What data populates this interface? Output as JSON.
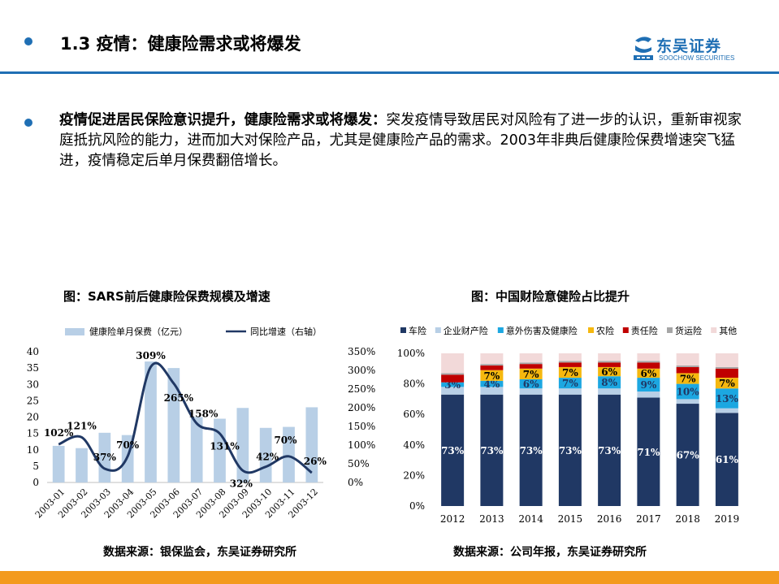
{
  "header": {
    "title": "1.3 疫情：健康险需求或将爆发",
    "logo_text": "东吴证券",
    "logo_sub": "SOOCHOW SECURITIES"
  },
  "body": {
    "bold_lead": "疫情促进居民保险意识提升，健康险需求或将爆发：",
    "text": "突发疫情导致居民对风险有了进一步的认识，重新审视家庭抵抗风险的能力，进而加大对保险产品，尤其是健康险产品的需求。2003年非典后健康险保费增速突飞猛进，疫情稳定后单月保费翻倍增长。"
  },
  "chart1": {
    "title": "图：SARS前后健康险保费规模及增速",
    "source": "数据来源：银保监会，东吴证券研究所"
  },
  "chart2": {
    "title": "图：中国财险意健险占比提升",
    "source": "数据来源：公司年报，东吴证券研究所"
  },
  "colors": {
    "brand": "#1f6fb4",
    "footer": "#f39a1e",
    "bar1": "#b8cfe6",
    "line1": "#203864"
  },
  "chart_data": [
    {
      "type": "bar",
      "categories": [
        "2003-01",
        "2003-02",
        "2003-03",
        "2003-04",
        "2003-05",
        "2003-06",
        "2003-07",
        "2003-08",
        "2003-09",
        "2003-10",
        "2003-11",
        "2003-12"
      ],
      "series": [
        {
          "name": "健康险单月保费（亿元）",
          "axis": "left",
          "type": "bar",
          "values": [
            11.2,
            10.5,
            15.2,
            14.5,
            37.0,
            35.0,
            20.0,
            19.5,
            22.8,
            16.7,
            17.0,
            23.0
          ]
        },
        {
          "name": "同比增速（右轴）",
          "axis": "right",
          "type": "line",
          "values": [
            102,
            121,
            37,
            70,
            309,
            265,
            158,
            131,
            32,
            42,
            70,
            26
          ],
          "labels": [
            "102%",
            "121%",
            "37%",
            "70%",
            "309%",
            "265%",
            "158%",
            "131%",
            "32%",
            "42%",
            "70%",
            "26%"
          ]
        }
      ],
      "yticks_left": [
        "0",
        "5",
        "10",
        "15",
        "20",
        "25",
        "30",
        "35",
        "40"
      ],
      "yticks_right": [
        "0%",
        "50%",
        "100%",
        "150%",
        "200%",
        "250%",
        "300%",
        "350%"
      ],
      "ylim_left": [
        0,
        40
      ],
      "ylim_right": [
        0,
        350
      ],
      "legend": "top"
    },
    {
      "type": "bar",
      "stacked": true,
      "categories": [
        "2012",
        "2013",
        "2014",
        "2015",
        "2016",
        "2017",
        "2018",
        "2019"
      ],
      "series": [
        {
          "name": "车险",
          "color": "#203864",
          "values": [
            73,
            73,
            73,
            73,
            73,
            71,
            67,
            61
          ],
          "labels": [
            "73%",
            "73%",
            "73%",
            "73%",
            "73%",
            "71%",
            "67%",
            "61%"
          ]
        },
        {
          "name": "企业财产险",
          "color": "#b8cfe6",
          "values": [
            5,
            5,
            4,
            4,
            4,
            4,
            3,
            3
          ],
          "labels": []
        },
        {
          "name": "意外伤害及健康险",
          "color": "#1ca7e1",
          "values": [
            3,
            4,
            6,
            7,
            8,
            9,
            10,
            13
          ],
          "labels": [
            "3%",
            "4%",
            "6%",
            "7%",
            "8%",
            "9%",
            "10%",
            "13%"
          ]
        },
        {
          "name": "农险",
          "color": "#f5b80f",
          "values": [
            0,
            7,
            7,
            7,
            6,
            6,
            7,
            7
          ],
          "labels": [
            "",
            "7%",
            "7%",
            "7%",
            "6%",
            "6%",
            "7%",
            "7%"
          ]
        },
        {
          "name": "责任险",
          "color": "#c00000",
          "values": [
            5,
            3,
            3,
            3,
            3,
            4,
            4,
            6
          ],
          "labels": []
        },
        {
          "name": "货运险",
          "color": "#a6a6a6",
          "values": [
            1,
            1,
            1,
            1,
            1,
            1,
            1,
            1
          ],
          "labels": []
        },
        {
          "name": "其他",
          "color": "#f2d9d9",
          "values": [
            13,
            7,
            6,
            5,
            5,
            5,
            8,
            9
          ],
          "labels": []
        }
      ],
      "yticks": [
        "0%",
        "20%",
        "40%",
        "60%",
        "80%",
        "100%"
      ],
      "ylim": [
        0,
        100
      ],
      "legend": "top"
    }
  ]
}
